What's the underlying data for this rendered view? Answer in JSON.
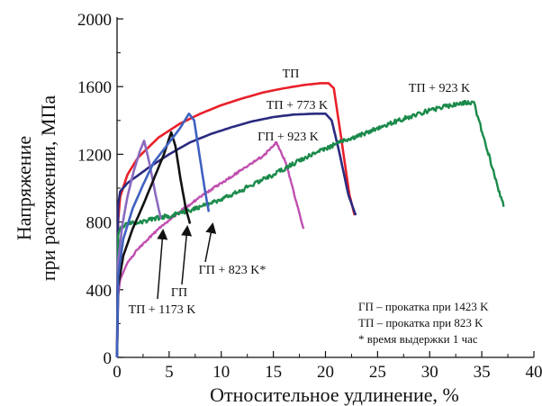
{
  "chart_data": {
    "type": "line",
    "xlabel": "Относительное удлинение, %",
    "ylabel_line1": "Напряжение",
    "ylabel_line2": "при растяжении, МПа",
    "xlim": [
      0,
      40
    ],
    "ylim": [
      0,
      2000
    ],
    "xticks": [
      "0",
      "5",
      "10",
      "15",
      "20",
      "25",
      "30",
      "35",
      "40"
    ],
    "yticks": [
      "0",
      "400",
      "800",
      "1200",
      "1600",
      "2000"
    ],
    "grid": false,
    "legend_notes": [
      "ГП – прокатка при 1423 K",
      "ТП – прокатка при 823 K",
      "* время выдержки 1 час"
    ],
    "series": [
      {
        "name": "ТП",
        "color": "#e8202a",
        "points": [
          [
            0,
            0
          ],
          [
            0.1,
            800
          ],
          [
            0.3,
            950
          ],
          [
            1,
            1080
          ],
          [
            2,
            1180
          ],
          [
            4,
            1300
          ],
          [
            6,
            1380
          ],
          [
            8,
            1440
          ],
          [
            10,
            1490
          ],
          [
            12,
            1530
          ],
          [
            14,
            1565
          ],
          [
            16,
            1590
          ],
          [
            18,
            1610
          ],
          [
            19.5,
            1620
          ],
          [
            20.3,
            1620
          ],
          [
            20.8,
            1590
          ],
          [
            21.5,
            1300
          ],
          [
            22.3,
            960
          ],
          [
            22.8,
            840
          ]
        ]
      },
      {
        "name": "ТП + 773 K",
        "color": "#2a2a80",
        "points": [
          [
            0,
            0
          ],
          [
            0.1,
            900
          ],
          [
            0.3,
            980
          ],
          [
            1,
            1030
          ],
          [
            3,
            1120
          ],
          [
            5,
            1200
          ],
          [
            7,
            1270
          ],
          [
            9,
            1320
          ],
          [
            11,
            1360
          ],
          [
            13,
            1395
          ],
          [
            15,
            1420
          ],
          [
            17,
            1435
          ],
          [
            19,
            1440
          ],
          [
            20,
            1440
          ],
          [
            20.6,
            1400
          ],
          [
            21.3,
            1220
          ],
          [
            22.2,
            960
          ],
          [
            22.9,
            840
          ]
        ]
      },
      {
        "name": "ГП + 923 K",
        "color": "#c050b0",
        "points": [
          [
            0,
            0
          ],
          [
            0.1,
            360
          ],
          [
            0.3,
            460
          ],
          [
            1,
            560
          ],
          [
            2,
            640
          ],
          [
            4,
            760
          ],
          [
            6,
            860
          ],
          [
            8,
            950
          ],
          [
            10,
            1030
          ],
          [
            12,
            1110
          ],
          [
            14,
            1190
          ],
          [
            15.3,
            1270
          ],
          [
            16.2,
            1150
          ],
          [
            17.2,
            920
          ],
          [
            17.9,
            760
          ]
        ]
      },
      {
        "name": "ТП + 923 K",
        "color": "#1a8a4a",
        "points": [
          [
            0,
            0
          ],
          [
            0.1,
            720
          ],
          [
            0.3,
            760
          ],
          [
            1,
            790
          ],
          [
            3,
            810
          ],
          [
            6,
            850
          ],
          [
            9,
            910
          ],
          [
            12,
            990
          ],
          [
            15,
            1080
          ],
          [
            18,
            1180
          ],
          [
            21,
            1260
          ],
          [
            24,
            1330
          ],
          [
            27,
            1400
          ],
          [
            30,
            1460
          ],
          [
            32,
            1490
          ],
          [
            33,
            1500
          ],
          [
            34.2,
            1510
          ],
          [
            35.2,
            1300
          ],
          [
            36.2,
            1080
          ],
          [
            37.1,
            890
          ]
        ]
      },
      {
        "name": "ТП + 1173 K",
        "color": "#8a6abf",
        "points": [
          [
            0,
            0
          ],
          [
            0.1,
            560
          ],
          [
            0.5,
            780
          ],
          [
            1,
            950
          ],
          [
            1.6,
            1100
          ],
          [
            2.2,
            1220
          ],
          [
            2.6,
            1280
          ],
          [
            3.1,
            1150
          ],
          [
            3.7,
            960
          ],
          [
            4.2,
            820
          ]
        ]
      },
      {
        "name": "ГП",
        "color": "#111111",
        "points": [
          [
            0,
            0
          ],
          [
            0.1,
            420
          ],
          [
            0.6,
            600
          ],
          [
            1.5,
            760
          ],
          [
            2.5,
            900
          ],
          [
            3.5,
            1050
          ],
          [
            4.5,
            1200
          ],
          [
            5.2,
            1330
          ],
          [
            5.6,
            1250
          ],
          [
            6.1,
            1050
          ],
          [
            6.6,
            880
          ],
          [
            7.0,
            790
          ]
        ]
      },
      {
        "name": "ГП + 823 K*",
        "color": "#3f62c0",
        "points": [
          [
            0,
            0
          ],
          [
            0.1,
            480
          ],
          [
            0.6,
            700
          ],
          [
            1.5,
            880
          ],
          [
            2.5,
            1020
          ],
          [
            3.5,
            1150
          ],
          [
            5,
            1270
          ],
          [
            6,
            1350
          ],
          [
            6.9,
            1440
          ],
          [
            7.4,
            1400
          ],
          [
            7.9,
            1200
          ],
          [
            8.4,
            1000
          ],
          [
            8.8,
            860
          ]
        ]
      }
    ],
    "annotations": [
      {
        "text": "ТП",
        "target": "ТП"
      },
      {
        "text": "ТП + 773 K",
        "target": "ТП + 773 K"
      },
      {
        "text": "ГП + 923 K",
        "target": "ГП + 923 K"
      },
      {
        "text": "ТП + 923 K",
        "target": "ТП + 923 K"
      },
      {
        "text": "ГП + 823 K*",
        "target": "ГП + 823 K*"
      },
      {
        "text": "ГП",
        "target": "ГП"
      },
      {
        "text": "ТП + 1173 K",
        "target": "ТП + 1173 K"
      }
    ]
  }
}
